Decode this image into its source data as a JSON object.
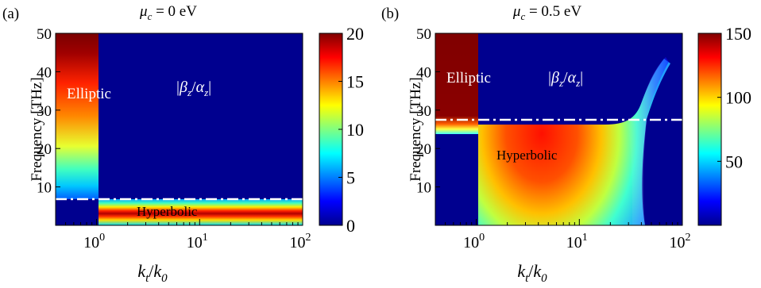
{
  "chart_data": [
    {
      "panel_label": "(a)",
      "title": "μc = 0 eV",
      "title_symbol": "μ",
      "title_sub": "c",
      "title_rest": " = 0 eV",
      "type": "heatmap",
      "xlabel_main": "k",
      "xlabel_sub": "t",
      "xlabel_den": "k",
      "xlabel_den_sub": "0",
      "ylabel": "Frequency [THz]",
      "x_scale": "log",
      "xlim": [
        0.4,
        100
      ],
      "ylim": [
        0,
        50
      ],
      "x_ticks": [
        {
          "value": 1,
          "base": "10",
          "exp": "0"
        },
        {
          "value": 10,
          "base": "10",
          "exp": "1"
        },
        {
          "value": 100,
          "base": "10",
          "exp": "2"
        }
      ],
      "y_ticks": [
        "10",
        "20",
        "30",
        "40",
        "50"
      ],
      "y_tick_values": [
        10,
        20,
        30,
        40,
        50
      ],
      "colorbar": {
        "min": 0,
        "max": 20,
        "ticks": [
          "0",
          "5",
          "10",
          "15",
          "20"
        ],
        "tick_values": [
          0,
          5,
          10,
          15,
          20
        ]
      },
      "quantity_label": "|βz/αz|",
      "annotations": {
        "elliptic": "Elliptic",
        "hyperbolic": "Hyperbolic"
      },
      "transition_frequency": 6.8,
      "regions": [
        {
          "name": "Elliptic",
          "kt_range": [
            0.4,
            1.0
          ],
          "freq_range": [
            6.8,
            50
          ],
          "value_at_top": 20,
          "value_at_bottom": 3
        },
        {
          "name": "Hyperbolic",
          "kt_range": [
            1.0,
            100
          ],
          "freq_range": [
            0.5,
            6.8
          ],
          "peak_value": 20,
          "peak_frequency": 2.5
        }
      ]
    },
    {
      "panel_label": "(b)",
      "title": "μc = 0.5 eV",
      "title_symbol": "μ",
      "title_sub": "c",
      "title_rest": " = 0.5 eV",
      "type": "heatmap",
      "xlabel_main": "k",
      "xlabel_sub": "t",
      "xlabel_den": "k",
      "xlabel_den_sub": "0",
      "ylabel": "Frequency [THz]",
      "x_scale": "log",
      "xlim": [
        0.4,
        100
      ],
      "ylim": [
        0,
        50
      ],
      "x_ticks": [
        {
          "value": 1,
          "base": "10",
          "exp": "0"
        },
        {
          "value": 10,
          "base": "10",
          "exp": "1"
        },
        {
          "value": 100,
          "base": "10",
          "exp": "2"
        }
      ],
      "y_ticks": [
        "10",
        "20",
        "30",
        "40",
        "50"
      ],
      "y_tick_values": [
        10,
        20,
        30,
        40,
        50
      ],
      "colorbar": {
        "min": 0,
        "max": 150,
        "ticks": [
          "50",
          "100",
          "150"
        ],
        "tick_values": [
          50,
          100,
          150
        ]
      },
      "quantity_label": "|βz/αz|",
      "annotations": {
        "elliptic": "Elliptic",
        "hyperbolic": "Hyperbolic"
      },
      "transition_frequency": 27.5,
      "regions": [
        {
          "name": "Elliptic",
          "kt_range": [
            0.4,
            1.0
          ],
          "freq_range": [
            29,
            50
          ],
          "value_at_top": 150,
          "value_at_bottom": 110
        },
        {
          "name": "Hyperbolic",
          "kt_range": [
            1.0,
            30
          ],
          "freq_range": [
            2,
            27.5
          ],
          "peak_value": 150,
          "peak_frequency": 17
        }
      ]
    }
  ]
}
